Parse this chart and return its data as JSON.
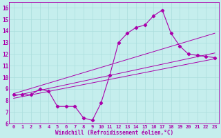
{
  "xlabel": "Windchill (Refroidissement éolien,°C)",
  "xlim": [
    -0.5,
    23.5
  ],
  "ylim": [
    6,
    16.5
  ],
  "xticks": [
    0,
    1,
    2,
    3,
    4,
    5,
    6,
    7,
    8,
    9,
    10,
    11,
    12,
    13,
    14,
    15,
    16,
    17,
    18,
    19,
    20,
    21,
    22,
    23
  ],
  "yticks": [
    6,
    7,
    8,
    9,
    10,
    11,
    12,
    13,
    14,
    15,
    16
  ],
  "bg_color": "#c5eeed",
  "line_color": "#aa00aa",
  "grid_color": "#aadddd",
  "jagged_x": [
    0,
    1,
    2,
    3,
    4,
    5,
    6,
    7,
    8,
    9,
    10,
    11,
    12,
    13,
    14,
    15,
    16,
    17,
    18,
    19,
    20,
    21,
    22,
    23
  ],
  "jagged_y": [
    8.5,
    8.5,
    8.5,
    9.0,
    8.8,
    7.5,
    7.5,
    7.5,
    6.5,
    6.3,
    7.8,
    10.2,
    13.0,
    13.8,
    14.3,
    14.5,
    15.3,
    15.8,
    13.8,
    12.7,
    12.0,
    11.9,
    11.8,
    11.7
  ],
  "trend_lines": [
    {
      "x": [
        0,
        23
      ],
      "y": [
        8.6,
        13.8
      ]
    },
    {
      "x": [
        0,
        23
      ],
      "y": [
        8.4,
        12.1
      ]
    },
    {
      "x": [
        0,
        23
      ],
      "y": [
        8.2,
        11.6
      ]
    }
  ],
  "xlabel_fontsize": 5.5,
  "tick_fontsize": 5.0
}
